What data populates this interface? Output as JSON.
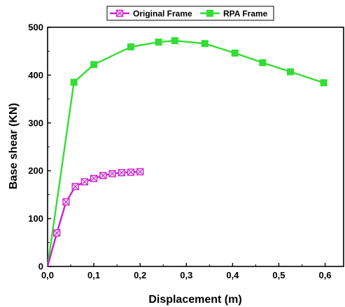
{
  "chart_data": {
    "type": "line",
    "xlabel": "Displacement (m)",
    "ylabel": "Base shear (KN)",
    "xlim": [
      0,
      0.64
    ],
    "ylim": [
      0,
      500
    ],
    "xticks": [
      "0,0",
      "0,1",
      "0,2",
      "0,3",
      "0,4",
      "0,5",
      "0,6"
    ],
    "yticks": [
      "0",
      "100",
      "200",
      "300",
      "400",
      "500"
    ],
    "legend_position": "top-center",
    "grid": false,
    "series": [
      {
        "name": "Original Frame",
        "color": "#cc22cc",
        "marker": "crossed-square",
        "x": [
          0,
          0.02,
          0.04,
          0.06,
          0.08,
          0.1,
          0.12,
          0.14,
          0.16,
          0.18,
          0.2
        ],
        "y": [
          0,
          70,
          135,
          167,
          177,
          184,
          190,
          194,
          196,
          197,
          198
        ]
      },
      {
        "name": "RPA Frame",
        "color": "#33dd33",
        "marker": "filled-square",
        "x": [
          0,
          0.057,
          0.1,
          0.18,
          0.24,
          0.275,
          0.34,
          0.405,
          0.465,
          0.525,
          0.597
        ],
        "y": [
          0,
          385,
          422,
          459,
          469,
          472,
          466,
          446,
          426,
          407,
          384
        ]
      }
    ]
  }
}
